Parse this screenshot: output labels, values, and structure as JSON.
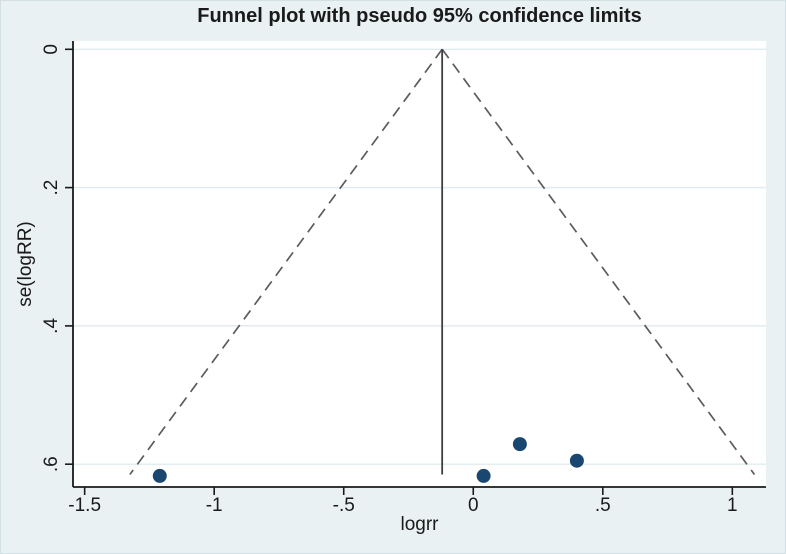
{
  "chart_data": {
    "type": "scatter",
    "title": "Funnel plot with pseudo 95% confidence limits",
    "xlabel": "logrr",
    "ylabel": "se(logRR)",
    "legend": "none",
    "grid": "horizontal-only",
    "y_axis_inverted": true,
    "x_range": [
      -1.545,
      1.13
    ],
    "y_range": [
      -0.012,
      0.633
    ],
    "x_ticks": [
      {
        "value": -1.5,
        "label": "-1.5"
      },
      {
        "value": -1.0,
        "label": "-1"
      },
      {
        "value": -0.5,
        "label": "-.5"
      },
      {
        "value": 0.0,
        "label": "0"
      },
      {
        "value": 0.5,
        "label": ".5"
      },
      {
        "value": 1.0,
        "label": "1"
      }
    ],
    "y_ticks": [
      {
        "value": 0.0,
        "label": "0"
      },
      {
        "value": 0.2,
        "label": ".2"
      },
      {
        "value": 0.4,
        "label": ".4"
      },
      {
        "value": 0.6,
        "label": ".6"
      }
    ],
    "points": [
      {
        "logrr": -1.21,
        "se": 0.617
      },
      {
        "logrr": 0.04,
        "se": 0.617
      },
      {
        "logrr": 0.18,
        "se": 0.571
      },
      {
        "logrr": 0.4,
        "se": 0.595
      }
    ],
    "funnel": {
      "pooled_logrr": -0.12,
      "z": 1.96,
      "se_max": 0.615,
      "description": "pseudo 95% confidence limits: pooled ± 1.96 × se"
    }
  },
  "colors": {
    "background": "#eaf1f3",
    "plot_background": "#ffffff",
    "gridline": "#dfecef",
    "axis": "#1a1a1a",
    "text": "#1a1a1a",
    "funnel_dashed": "#5c5c5c",
    "pooled_line": "#3f3f3f",
    "marker": "#1a476f"
  }
}
